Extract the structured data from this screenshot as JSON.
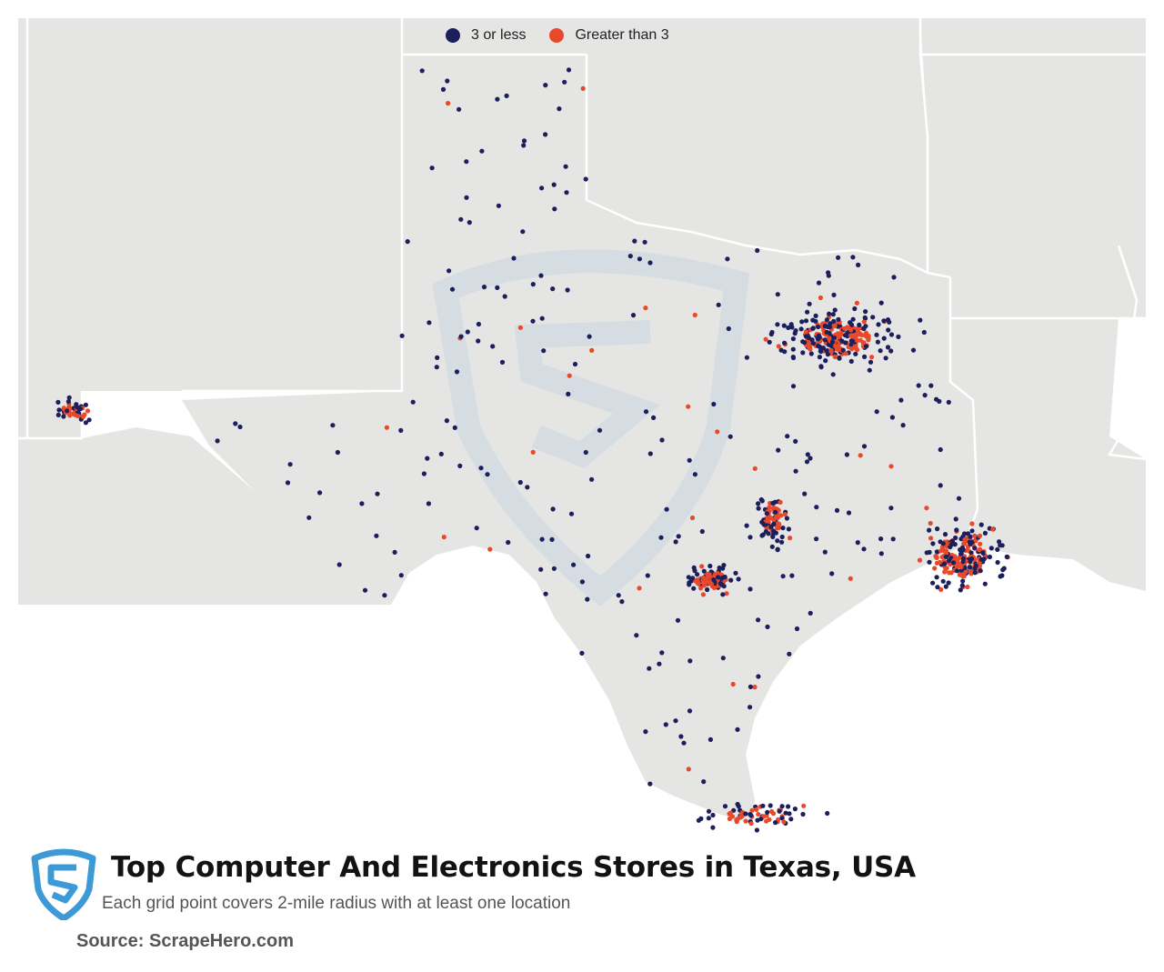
{
  "legend": [
    {
      "label": "3 or less",
      "color": "#1b1f5c"
    },
    {
      "label": "Greater than 3",
      "color": "#e8492a"
    }
  ],
  "colors": {
    "land": "#e5e5e4",
    "border": "#ffffff",
    "low": "#1b1f5c",
    "high": "#e8492a",
    "watermark": "#c9d7e1",
    "logo": "#3d9ad6"
  },
  "title": "Top Computer And Electronics Stores in Texas, USA",
  "subtitle": "Each grid point covers 2-mile radius with at least one location",
  "source": "Source: ScrapeHero.com",
  "logo_icon": "scrapehero-shield-logo",
  "clusters": [
    {
      "name": "Dallas-Fort Worth",
      "lon": -96.95,
      "lat": 32.8
    },
    {
      "name": "Houston",
      "lon": -95.4,
      "lat": 29.78
    },
    {
      "name": "San Antonio",
      "lon": -98.5,
      "lat": 29.45
    },
    {
      "name": "Austin",
      "lon": -97.75,
      "lat": 30.3
    },
    {
      "name": "El Paso",
      "lon": -106.4,
      "lat": 31.8
    },
    {
      "name": "McAllen-Brownsville",
      "lon": -97.9,
      "lat": 26.2
    }
  ]
}
